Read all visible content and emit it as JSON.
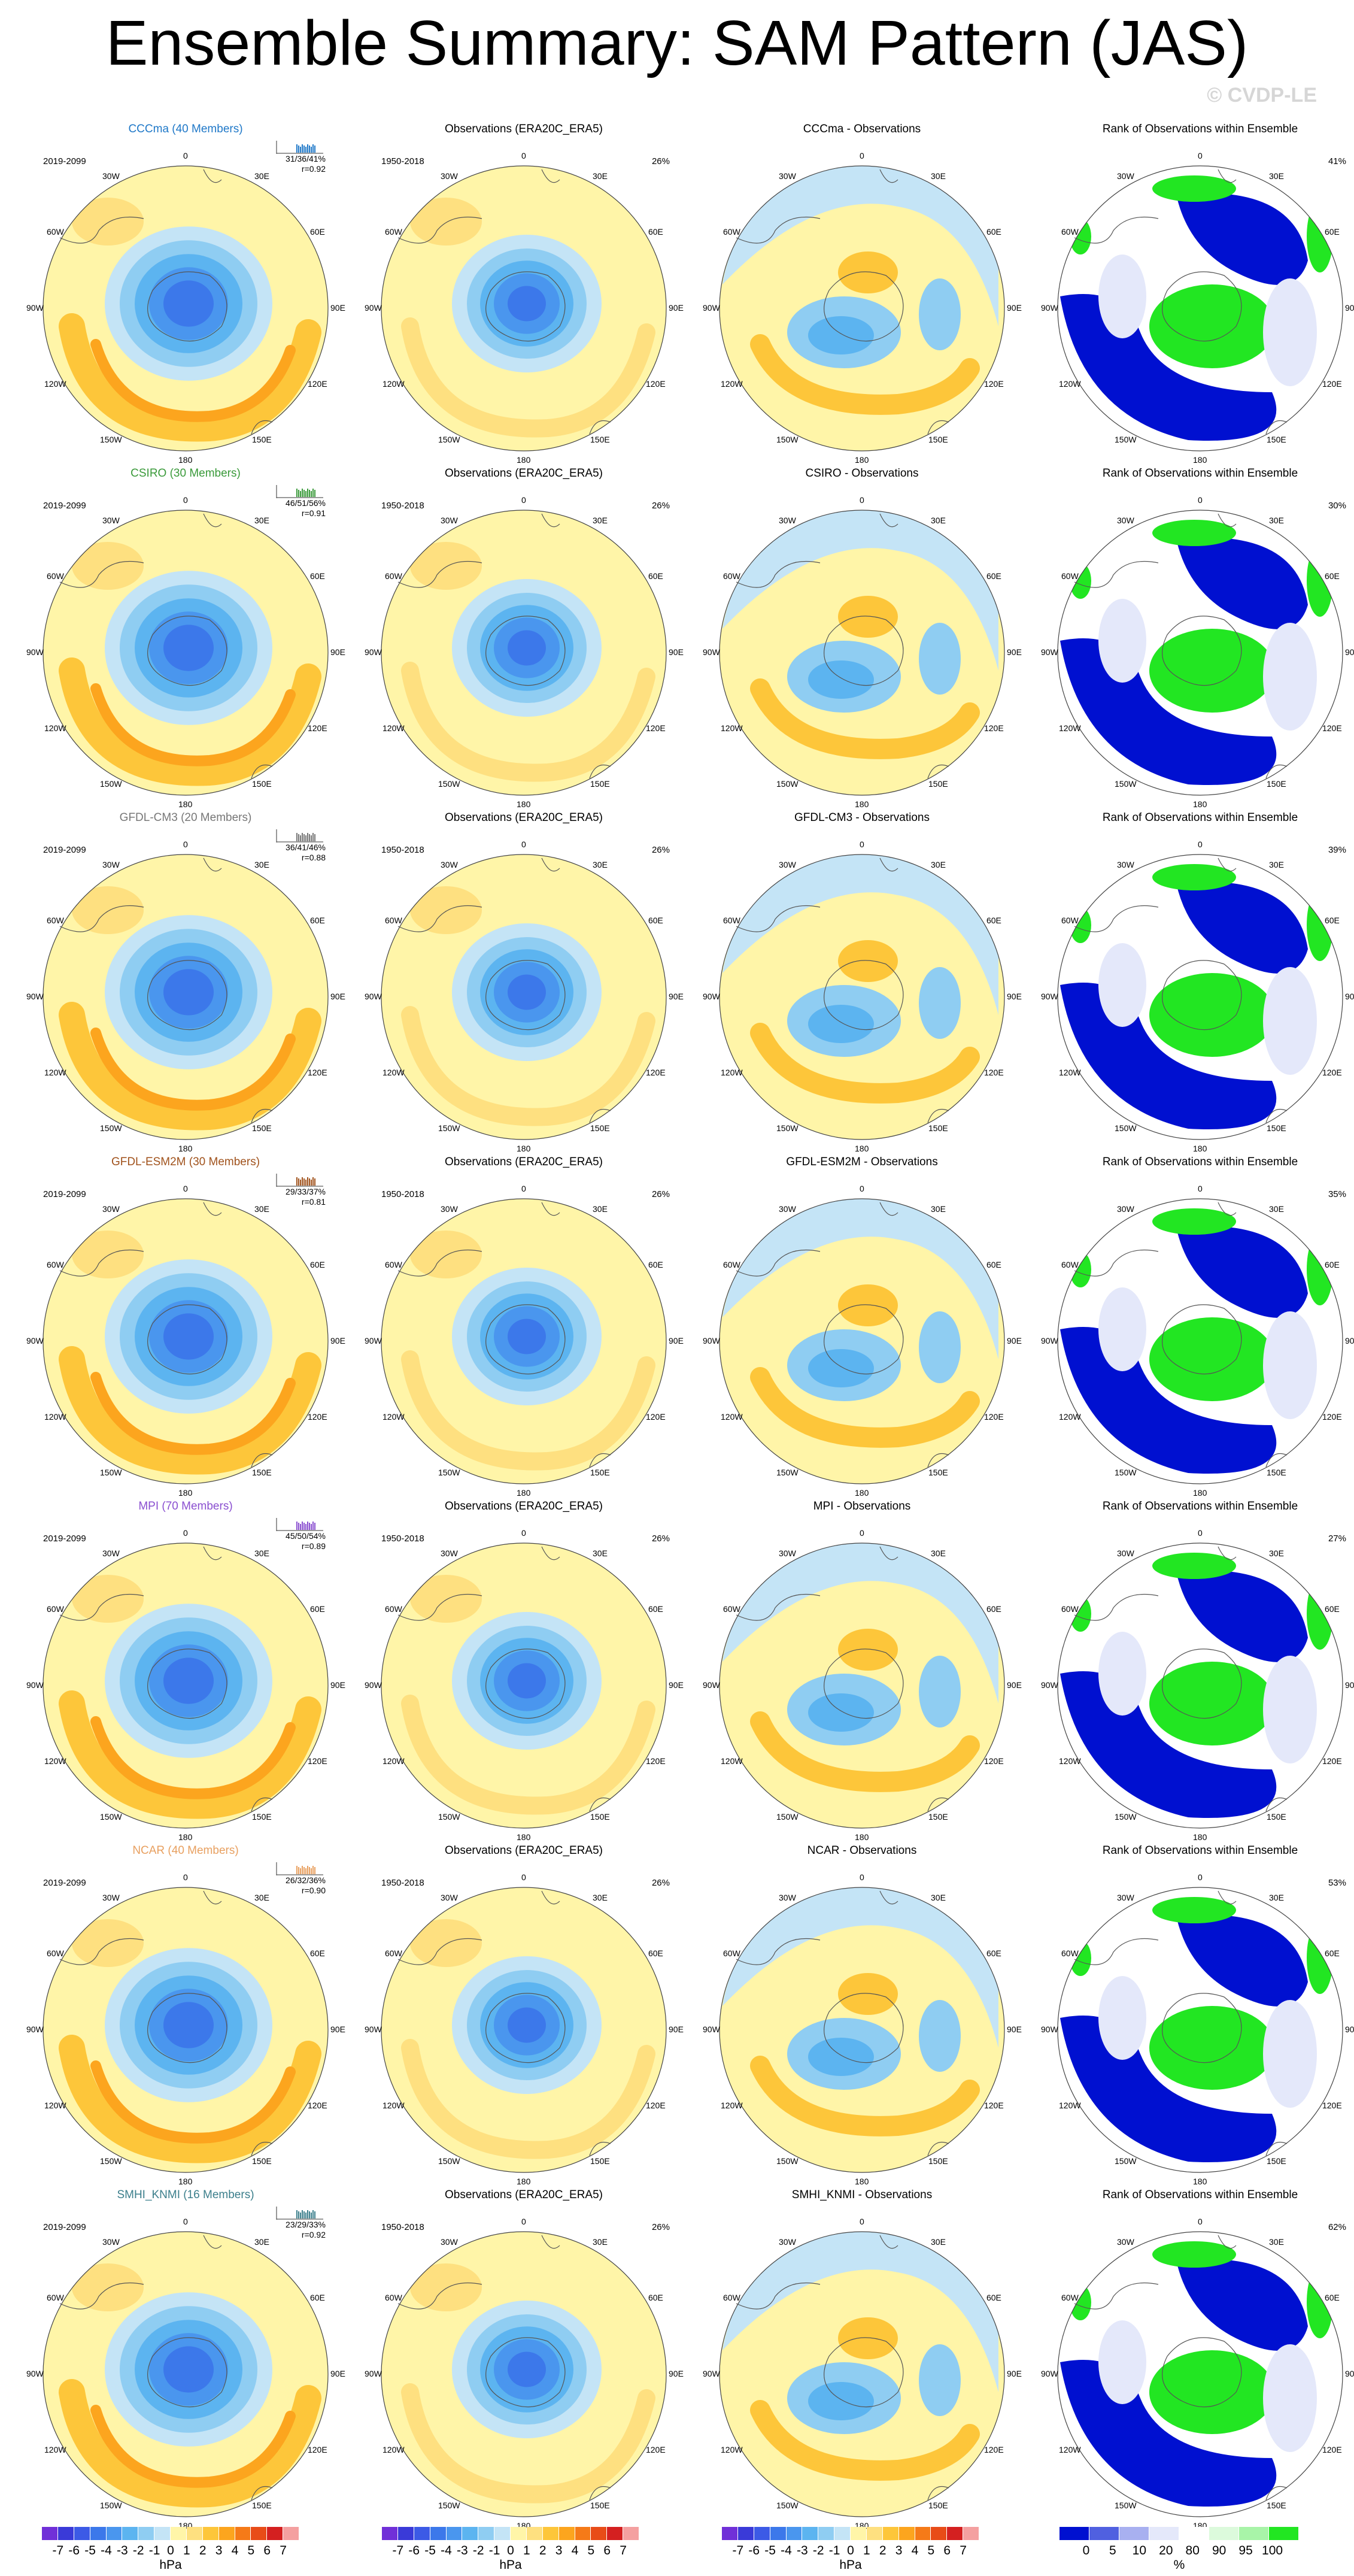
{
  "title": "Ensemble Summary: SAM Pattern (JAS)",
  "watermark": "© CVDP-LE",
  "lon_labels": [
    "0",
    "30E",
    "60E",
    "90E",
    "120E",
    "150E",
    "180",
    "150W",
    "120W",
    "90W",
    "60W",
    "30W"
  ],
  "obs_period": "1950-2018",
  "obs_pct": "26%",
  "model_period": "2019-2099",
  "obs_title": "Observations (ERA20C_ERA5)",
  "rank_title": "Rank of Observations within Ensemble",
  "rows": [
    {
      "model_title": "CCCma (40 Members)",
      "model_color": "#1f78c8",
      "stats": [
        "31/36/41%",
        "r=0.92"
      ],
      "diff_title": "CCCma - Observations",
      "rank_pct": "41%"
    },
    {
      "model_title": "CSIRO (30 Members)",
      "model_color": "#3a9a3a",
      "stats": [
        "46/51/56%",
        "r=0.91"
      ],
      "diff_title": "CSIRO - Observations",
      "rank_pct": "30%"
    },
    {
      "model_title": "GFDL-CM3 (20 Members)",
      "model_color": "#777777",
      "stats": [
        "36/41/46%",
        "r=0.88"
      ],
      "diff_title": "GFDL-CM3 - Observations",
      "rank_pct": "39%"
    },
    {
      "model_title": "GFDL-ESM2M (30 Members)",
      "model_color": "#a0521c",
      "stats": [
        "29/33/37%",
        "r=0.81"
      ],
      "diff_title": "GFDL-ESM2M - Observations",
      "rank_pct": "35%"
    },
    {
      "model_title": "MPI (70 Members)",
      "model_color": "#8a4fd0",
      "stats": [
        "45/50/54%",
        "r=0.89"
      ],
      "diff_title": "MPI - Observations",
      "rank_pct": "27%"
    },
    {
      "model_title": "NCAR (40 Members)",
      "model_color": "#e8a060",
      "stats": [
        "26/32/36%",
        "r=0.90"
      ],
      "diff_title": "NCAR - Observations",
      "rank_pct": "53%"
    },
    {
      "model_title": "SMHI_KNMI (16 Members)",
      "model_color": "#3c7f8c",
      "stats": [
        "23/29/33%",
        "r=0.92"
      ],
      "diff_title": "SMHI_KNMI - Observations",
      "rank_pct": "62%"
    }
  ],
  "colorbar_hpa": {
    "ticks": [
      "-7",
      "-6",
      "-5",
      "-4",
      "-3",
      "-2",
      "-1",
      "0",
      "1",
      "2",
      "3",
      "4",
      "5",
      "6",
      "7"
    ],
    "unit": "hPa",
    "colors": [
      "#7030d8",
      "#3a3ad8",
      "#3c5ae6",
      "#3c78ea",
      "#4a96ee",
      "#5cb4f0",
      "#8fcdf2",
      "#c4e4f6",
      "#fff5a8",
      "#fee080",
      "#fdc63a",
      "#fca51e",
      "#f57a18",
      "#e84c18",
      "#d42020",
      "#f4a0a0"
    ]
  },
  "colorbar_rank": {
    "ticks": [
      "0",
      "5",
      "10",
      "20",
      "80",
      "90",
      "95",
      "100"
    ],
    "unit": "%",
    "colors": [
      "#0010d0",
      "#5060e0",
      "#a8b0f0",
      "#e4e8fa",
      "#ffffff",
      "#dcfadc",
      "#a8f4a8",
      "#22e622"
    ]
  }
}
